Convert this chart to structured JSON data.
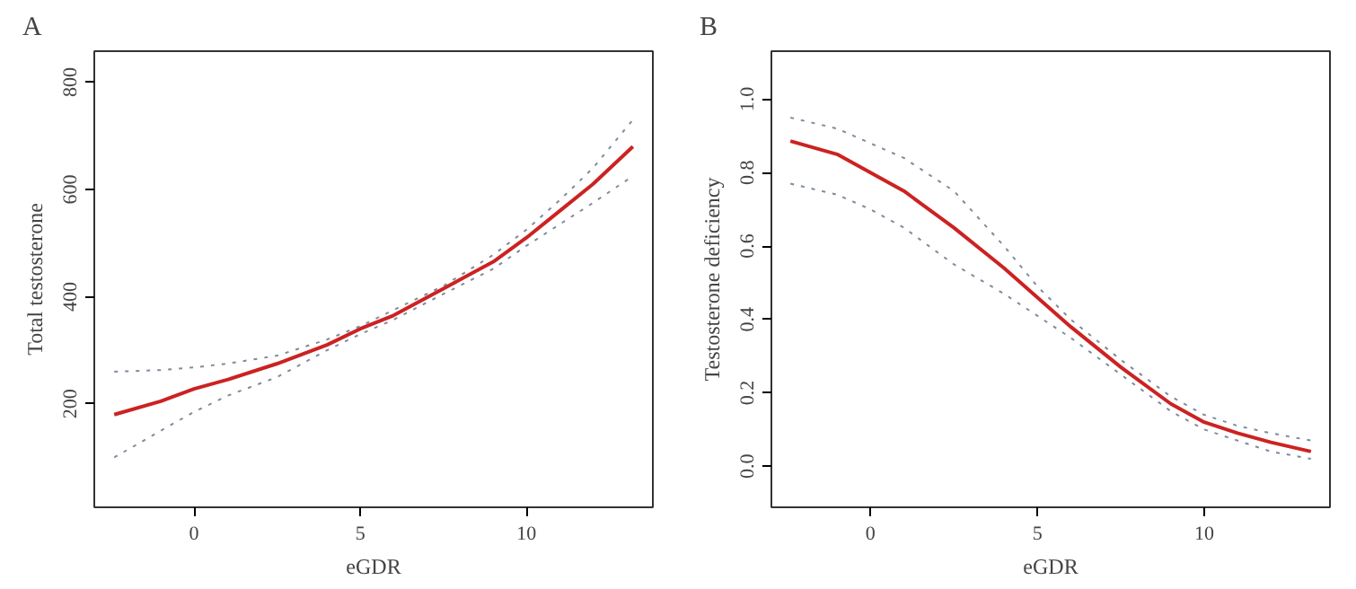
{
  "chart_data": [
    {
      "type": "line",
      "title": "A",
      "xlabel": "eGDR",
      "ylabel": "Total testosterone",
      "x": [
        -2.4,
        -1,
        0,
        1,
        2.5,
        4,
        5,
        6,
        7.5,
        9,
        10,
        11,
        12,
        13.2
      ],
      "series": [
        {
          "color": "#7f8c9c",
          "line_style": "dotted",
          "values": [
            260,
            263,
            268,
            275,
            290,
            320,
            345,
            375,
            420,
            478,
            525,
            580,
            640,
            730
          ]
        },
        {
          "color": "#7f8c9c",
          "line_style": "dotted",
          "values": [
            100,
            150,
            185,
            215,
            250,
            300,
            330,
            357,
            405,
            452,
            495,
            535,
            575,
            625
          ]
        },
        {
          "color": "#cc2222",
          "values": [
            180,
            205,
            228,
            245,
            275,
            310,
            340,
            365,
            415,
            465,
            510,
            560,
            610,
            680
          ]
        }
      ],
      "xlim": [
        -3.0,
        13.8
      ],
      "ylim": [
        7,
        858
      ],
      "xticks": [
        0,
        5,
        10
      ],
      "yticks": [
        200,
        400,
        600,
        800
      ],
      "line_style": "solid"
    },
    {
      "type": "line",
      "title": "B",
      "xlabel": "eGDR",
      "ylabel": "Testosterone deficiency",
      "x": [
        -2.4,
        -1,
        0,
        1,
        2.5,
        4,
        5,
        6,
        7.5,
        9,
        10,
        11,
        12,
        13.2
      ],
      "series": [
        {
          "color": "#7f8c9c",
          "line_style": "dotted",
          "values": [
            0.95,
            0.92,
            0.88,
            0.84,
            0.75,
            0.6,
            0.49,
            0.4,
            0.29,
            0.19,
            0.14,
            0.11,
            0.09,
            0.07
          ]
        },
        {
          "color": "#7f8c9c",
          "line_style": "dotted",
          "values": [
            0.77,
            0.74,
            0.7,
            0.65,
            0.55,
            0.47,
            0.41,
            0.35,
            0.25,
            0.15,
            0.1,
            0.07,
            0.04,
            0.02
          ]
        },
        {
          "color": "#cc2222",
          "values": [
            0.886,
            0.85,
            0.8,
            0.75,
            0.65,
            0.54,
            0.46,
            0.38,
            0.27,
            0.17,
            0.12,
            0.09,
            0.065,
            0.04
          ]
        }
      ],
      "xlim": [
        -2.97,
        13.77
      ],
      "ylim": [
        -0.112,
        1.131
      ],
      "xticks": [
        0,
        5,
        10
      ],
      "yticks": [
        {
          "value": 0,
          "label": "0.0"
        },
        0.2,
        0.4,
        0.6,
        0.8,
        {
          "value": 1,
          "label": "1.0"
        }
      ],
      "line_style": "solid"
    }
  ]
}
